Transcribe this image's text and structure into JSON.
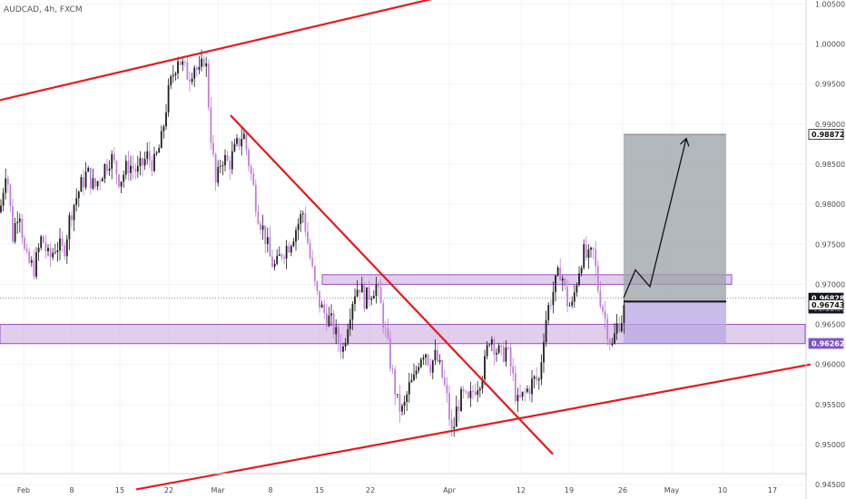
{
  "chart_data": {
    "type": "candlestick",
    "title": "AUDCAD, 4h, FXCM",
    "ylim": [
      0.9432,
      1.0055
    ],
    "y_ticks": [
      "1.00500",
      "1.00000",
      "0.99500",
      "0.99000",
      "0.98500",
      "0.98000",
      "0.97500",
      "0.97000",
      "0.96500",
      "0.96000",
      "0.95500",
      "0.95000",
      "0.94500"
    ],
    "x_tick_labels": [
      "Feb",
      "8",
      "15",
      "22",
      "Mar",
      "8",
      "15",
      "22",
      "Apr",
      "12",
      "19",
      "26",
      "May",
      "10",
      "17"
    ],
    "price_path": [
      [
        0,
        0.979
      ],
      [
        7,
        0.985
      ],
      [
        14,
        0.976
      ],
      [
        21,
        0.98
      ],
      [
        28,
        0.973
      ],
      [
        38,
        0.972
      ],
      [
        46,
        0.976
      ],
      [
        54,
        0.973
      ],
      [
        62,
        0.975
      ],
      [
        70,
        0.974
      ],
      [
        78,
        0.979
      ],
      [
        88,
        0.982
      ],
      [
        96,
        0.984
      ],
      [
        104,
        0.982
      ],
      [
        112,
        0.984
      ],
      [
        122,
        0.986
      ],
      [
        132,
        0.983
      ],
      [
        142,
        0.985
      ],
      [
        152,
        0.984
      ],
      [
        162,
        0.986
      ],
      [
        170,
        0.985
      ],
      [
        178,
        0.988
      ],
      [
        184,
        0.993
      ],
      [
        190,
        0.996
      ],
      [
        196,
        0.9985
      ],
      [
        202,
        0.997
      ],
      [
        208,
        0.996
      ],
      [
        214,
        0.9975
      ],
      [
        220,
        0.996
      ],
      [
        226,
        0.999
      ],
      [
        232,
        0.989
      ],
      [
        238,
        0.982
      ],
      [
        244,
        0.986
      ],
      [
        252,
        0.985
      ],
      [
        260,
        0.987
      ],
      [
        268,
        0.989
      ],
      [
        276,
        0.984
      ],
      [
        284,
        0.979
      ],
      [
        292,
        0.976
      ],
      [
        298,
        0.973
      ],
      [
        304,
        0.972
      ],
      [
        310,
        0.974
      ],
      [
        318,
        0.975
      ],
      [
        326,
        0.977
      ],
      [
        334,
        0.979
      ],
      [
        342,
        0.973
      ],
      [
        348,
        0.969
      ],
      [
        354,
        0.967
      ],
      [
        360,
        0.966
      ],
      [
        366,
        0.965
      ],
      [
        372,
        0.963
      ],
      [
        378,
        0.962
      ],
      [
        384,
        0.966
      ],
      [
        390,
        0.969
      ],
      [
        396,
        0.97
      ],
      [
        402,
        0.968
      ],
      [
        408,
        0.969
      ],
      [
        414,
        0.97
      ],
      [
        420,
        0.967
      ],
      [
        426,
        0.963
      ],
      [
        432,
        0.959
      ],
      [
        438,
        0.955
      ],
      [
        444,
        0.954
      ],
      [
        450,
        0.957
      ],
      [
        456,
        0.958
      ],
      [
        462,
        0.961
      ],
      [
        468,
        0.962
      ],
      [
        474,
        0.96
      ],
      [
        480,
        0.961
      ],
      [
        486,
        0.959
      ],
      [
        492,
        0.956
      ],
      [
        498,
        0.951
      ],
      [
        504,
        0.955
      ],
      [
        510,
        0.956
      ],
      [
        516,
        0.955
      ],
      [
        522,
        0.957
      ],
      [
        528,
        0.958
      ],
      [
        534,
        0.96
      ],
      [
        540,
        0.964
      ],
      [
        546,
        0.962
      ],
      [
        552,
        0.961
      ],
      [
        558,
        0.962
      ],
      [
        564,
        0.959
      ],
      [
        570,
        0.955
      ],
      [
        576,
        0.956
      ],
      [
        582,
        0.957
      ],
      [
        588,
        0.958
      ],
      [
        594,
        0.958
      ],
      [
        600,
        0.965
      ],
      [
        606,
        0.968
      ],
      [
        612,
        0.97
      ],
      [
        618,
        0.972
      ],
      [
        624,
        0.968
      ],
      [
        630,
        0.967
      ],
      [
        636,
        0.971
      ],
      [
        642,
        0.974
      ],
      [
        648,
        0.973
      ],
      [
        654,
        0.974
      ],
      [
        658,
        0.97
      ],
      [
        662,
        0.968
      ],
      [
        668,
        0.965
      ],
      [
        674,
        0.962
      ],
      [
        680,
        0.965
      ],
      [
        686,
        0.966
      ],
      [
        690,
        0.9683
      ]
    ],
    "trendlines": [
      {
        "name": "upper-channel",
        "points": [
          [
            0,
            0.993
          ],
          [
            490,
            1.006
          ]
        ]
      },
      {
        "name": "descending-trendline",
        "points": [
          [
            254,
            0.9911
          ],
          [
            609,
            0.9488
          ]
        ]
      },
      {
        "name": "lower-channel",
        "points": [
          [
            150,
            0.9444
          ],
          [
            893,
            0.96
          ]
        ]
      }
    ],
    "zones": [
      {
        "name": "resistance-zone",
        "x": [
          355,
          806
        ],
        "y": [
          0.97,
          0.9712
        ]
      },
      {
        "name": "support-zone",
        "x": [
          0,
          887
        ],
        "y": [
          0.9626,
          0.965
        ]
      }
    ],
    "position": {
      "x": [
        687,
        800
      ],
      "entry": 0.96785,
      "target": 0.98872,
      "stop": 0.96262
    },
    "projection": [
      [
        687,
        0.9683
      ],
      [
        700,
        0.9718
      ],
      [
        716,
        0.9697
      ],
      [
        756,
        0.9882
      ]
    ],
    "price_tags": [
      {
        "name": "target-price-tag",
        "value": 0.98872,
        "label": "0.98872",
        "style": "outline"
      },
      {
        "name": "current-price-tag",
        "value": 0.96828,
        "label": "0.96828",
        "sublabel": "01:11:55",
        "style": "dark"
      },
      {
        "name": "zone-top-price-tag",
        "value": 0.96743,
        "label": "0.96743",
        "style": "outline"
      },
      {
        "name": "stop-price-tag",
        "value": 0.96262,
        "label": "0.96262",
        "style": "purple"
      }
    ],
    "colors": {
      "trendline": "#e8191b",
      "bull_candle": "#1e1e1e",
      "bear_candle": "#c27ed6",
      "zone_fill": "#c9a4dd",
      "zone_border": "#9a4fc0",
      "profit_box": "#9aa0a6",
      "loss_box": "#b8a6e3",
      "grid": "#f0f3fa"
    }
  }
}
